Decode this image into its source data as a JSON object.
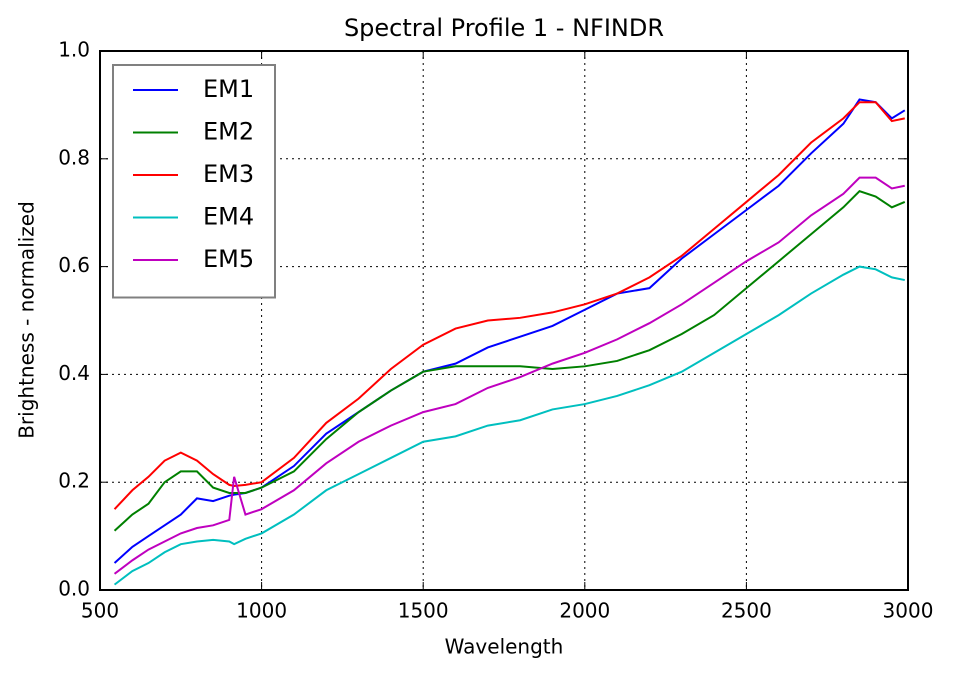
{
  "chart_data": {
    "type": "line",
    "title": "Spectral Profile 1 - NFINDR",
    "x_label": "Wavelength",
    "y_label": "Brightness - normalized",
    "x": [
      545,
      600,
      650,
      700,
      750,
      800,
      850,
      900,
      915,
      950,
      1000,
      1100,
      1200,
      1300,
      1400,
      1500,
      1600,
      1700,
      1800,
      1900,
      2000,
      2100,
      2200,
      2300,
      2400,
      2500,
      2600,
      2700,
      2800,
      2850,
      2900,
      2950,
      2990
    ],
    "series": [
      {
        "name": "EM1",
        "color": "#0000ff",
        "values": [
          0.05,
          0.08,
          0.1,
          0.12,
          0.14,
          0.17,
          0.165,
          0.175,
          0.177,
          0.18,
          0.19,
          0.23,
          0.29,
          0.33,
          0.37,
          0.405,
          0.42,
          0.45,
          0.47,
          0.49,
          0.52,
          0.55,
          0.56,
          0.615,
          0.66,
          0.705,
          0.75,
          0.81,
          0.865,
          0.91,
          0.905,
          0.875,
          0.89
        ]
      },
      {
        "name": "EM2",
        "color": "#008000",
        "values": [
          0.11,
          0.14,
          0.16,
          0.2,
          0.22,
          0.22,
          0.19,
          0.18,
          0.18,
          0.18,
          0.19,
          0.22,
          0.28,
          0.33,
          0.37,
          0.405,
          0.415,
          0.415,
          0.415,
          0.41,
          0.415,
          0.425,
          0.445,
          0.475,
          0.51,
          0.56,
          0.61,
          0.66,
          0.71,
          0.74,
          0.73,
          0.71,
          0.72
        ]
      },
      {
        "name": "EM3",
        "color": "#ff0000",
        "values": [
          0.15,
          0.185,
          0.21,
          0.24,
          0.255,
          0.24,
          0.215,
          0.195,
          0.193,
          0.195,
          0.2,
          0.245,
          0.31,
          0.355,
          0.41,
          0.455,
          0.485,
          0.5,
          0.505,
          0.515,
          0.53,
          0.55,
          0.58,
          0.62,
          0.67,
          0.72,
          0.77,
          0.83,
          0.875,
          0.905,
          0.905,
          0.87,
          0.875
        ]
      },
      {
        "name": "EM4",
        "color": "#00bfbf",
        "values": [
          0.01,
          0.035,
          0.05,
          0.07,
          0.085,
          0.09,
          0.093,
          0.09,
          0.085,
          0.095,
          0.105,
          0.14,
          0.185,
          0.215,
          0.245,
          0.275,
          0.285,
          0.305,
          0.315,
          0.335,
          0.345,
          0.36,
          0.38,
          0.405,
          0.44,
          0.475,
          0.51,
          0.55,
          0.585,
          0.6,
          0.595,
          0.58,
          0.575
        ]
      },
      {
        "name": "EM5",
        "color": "#bf00bf",
        "values": [
          0.03,
          0.055,
          0.075,
          0.09,
          0.105,
          0.115,
          0.12,
          0.13,
          0.21,
          0.14,
          0.15,
          0.185,
          0.235,
          0.275,
          0.305,
          0.33,
          0.345,
          0.375,
          0.395,
          0.42,
          0.44,
          0.465,
          0.495,
          0.53,
          0.57,
          0.61,
          0.645,
          0.695,
          0.735,
          0.765,
          0.765,
          0.745,
          0.75
        ]
      }
    ],
    "xlim": [
      500,
      3000
    ],
    "xticks": [
      500,
      1000,
      1500,
      2000,
      2500,
      3000
    ],
    "ylim": [
      0,
      1
    ],
    "yticks": [
      {
        "value": 0,
        "label": "0.0"
      },
      0.2,
      0.4,
      0.6,
      0.8,
      {
        "value": 1,
        "label": "1.0"
      }
    ],
    "grid": true,
    "legend": "upper left"
  }
}
